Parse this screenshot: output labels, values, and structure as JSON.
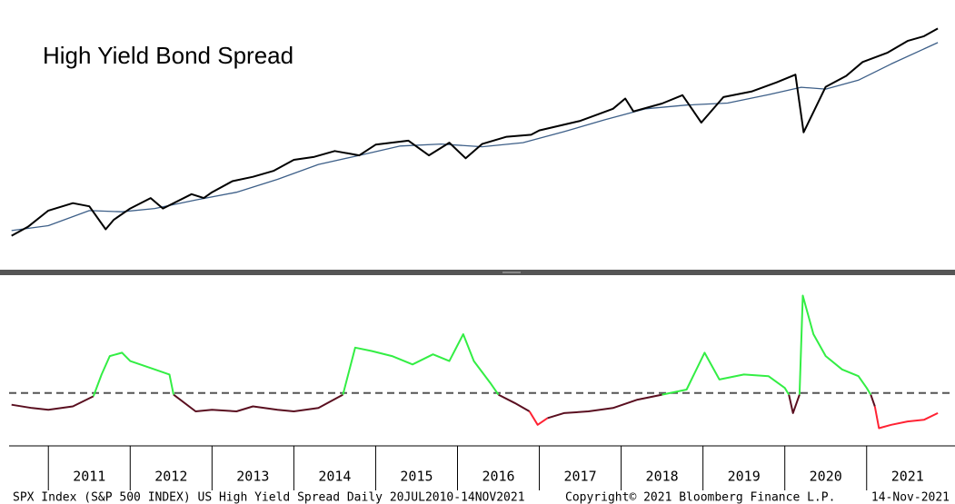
{
  "chart_data": [
    {
      "type": "line",
      "title": "High Yield Bond Spread",
      "log": true,
      "xlim": [
        2010.52,
        2021.88
      ],
      "ylim": [
        1000,
        4900
      ],
      "x": [
        2010.55,
        2010.75,
        2011,
        2011.3,
        2011.5,
        2011.7,
        2011.8,
        2012,
        2012.25,
        2012.4,
        2012.75,
        2012.9,
        2013,
        2013.25,
        2013.5,
        2013.75,
        2014,
        2014.25,
        2014.5,
        2014.8,
        2015,
        2015.4,
        2015.65,
        2015.9,
        2016.1,
        2016.3,
        2016.6,
        2016.9,
        2017,
        2017.5,
        2017.9,
        2018.05,
        2018.15,
        2018.5,
        2018.75,
        2018.98,
        2019.25,
        2019.6,
        2019.9,
        2020.13,
        2020.23,
        2020.5,
        2020.75,
        2020.95,
        2021.25,
        2021.5,
        2021.7,
        2021.87
      ],
      "series": [
        {
          "color": "#000000",
          "values": [
            1070,
            1140,
            1280,
            1350,
            1320,
            1120,
            1200,
            1300,
            1400,
            1300,
            1440,
            1400,
            1460,
            1580,
            1630,
            1700,
            1840,
            1880,
            1960,
            1900,
            2050,
            2110,
            1900,
            2080,
            1860,
            2060,
            2170,
            2200,
            2270,
            2430,
            2650,
            2850,
            2600,
            2750,
            2920,
            2400,
            2880,
            3000,
            3200,
            3380,
            2240,
            3100,
            3350,
            3700,
            3950,
            4300,
            4450,
            4700
          ]
        }
      ],
      "ma_x": [
        2010.55,
        2011,
        2011.5,
        2011.9,
        2012.3,
        2012.8,
        2013.3,
        2013.8,
        2014.3,
        2014.8,
        2015.3,
        2015.8,
        2016.3,
        2016.8,
        2017.3,
        2017.8,
        2018.3,
        2018.8,
        2019.3,
        2019.8,
        2020.2,
        2020.5,
        2020.9,
        2021.3,
        2021.87
      ],
      "ma_color": "#3d5f88",
      "ma_values": [
        1110,
        1150,
        1280,
        1270,
        1300,
        1380,
        1460,
        1600,
        1780,
        1900,
        2030,
        2060,
        2020,
        2080,
        2250,
        2450,
        2650,
        2720,
        2760,
        2930,
        3090,
        3050,
        3250,
        3650,
        4250
      ]
    },
    {
      "type": "line",
      "xlim": [
        2010.52,
        2021.88
      ],
      "ylim": [
        2,
        11.2
      ],
      "xticks": [
        2011,
        2012,
        2013,
        2014,
        2015,
        2016,
        2017,
        2018,
        2019,
        2020,
        2021
      ],
      "threshold": 5.1,
      "x": [
        2010.55,
        2010.8,
        2011,
        2011.3,
        2011.55,
        2011.65,
        2011.75,
        2011.9,
        2012,
        2012.3,
        2012.48,
        2012.53,
        2012.8,
        2013,
        2013.3,
        2013.5,
        2013.8,
        2014,
        2014.3,
        2014.6,
        2014.75,
        2014.95,
        2015.2,
        2015.45,
        2015.7,
        2015.9,
        2016.07,
        2016.2,
        2016.4,
        2016.5,
        2016.7,
        2016.88,
        2016.98,
        2017.1,
        2017.3,
        2017.6,
        2017.9,
        2018.2,
        2018.5,
        2018.8,
        2019.02,
        2019.2,
        2019.5,
        2019.8,
        2020,
        2020.05,
        2020.1,
        2020.18,
        2020.22,
        2020.35,
        2020.5,
        2020.7,
        2020.9,
        2021,
        2021.05,
        2021.1,
        2021.15,
        2021.3,
        2021.5,
        2021.7,
        2021.87
      ],
      "series": [
        {
          "color": "#5a0f20",
          "values": [
            4.4,
            4.2,
            4.1,
            4.3,
            4.9,
            null,
            null,
            null,
            null,
            null,
            null,
            5.0,
            4.0,
            4.1,
            4.0,
            4.3,
            4.1,
            4.0,
            4.2,
            5.0,
            null,
            null,
            null,
            null,
            null,
            null,
            null,
            null,
            null,
            5.0,
            4.5,
            4.0,
            null,
            3.6,
            3.9,
            4.0,
            4.2,
            4.7,
            5.0,
            null,
            null,
            null,
            null,
            null,
            null,
            5.0,
            3.9,
            5.0,
            null,
            null,
            null,
            null,
            null,
            null,
            5.0,
            4.3,
            null,
            null,
            null,
            null,
            null
          ]
        },
        {
          "color": "#33ee44",
          "values": [
            null,
            null,
            null,
            null,
            4.9,
            6.2,
            7.3,
            7.5,
            7.0,
            6.5,
            6.2,
            5.0,
            null,
            null,
            null,
            null,
            null,
            null,
            null,
            5.0,
            7.8,
            7.6,
            7.3,
            6.8,
            7.4,
            7.0,
            8.6,
            7.0,
            5.7,
            5.0,
            null,
            null,
            null,
            null,
            null,
            null,
            null,
            null,
            5.0,
            5.3,
            7.5,
            5.9,
            6.2,
            6.1,
            5.4,
            5.0,
            null,
            5.0,
            10.9,
            8.6,
            7.3,
            6.5,
            6.1,
            5.4,
            5.0,
            null,
            null,
            null,
            null,
            null,
            null
          ]
        },
        {
          "color": "#ff2233",
          "values": [
            null,
            null,
            null,
            null,
            null,
            null,
            null,
            null,
            null,
            null,
            null,
            null,
            null,
            null,
            null,
            null,
            null,
            null,
            null,
            null,
            null,
            null,
            null,
            null,
            null,
            null,
            null,
            null,
            null,
            null,
            null,
            4.0,
            3.2,
            3.6,
            null,
            null,
            null,
            null,
            null,
            null,
            null,
            null,
            null,
            null,
            null,
            null,
            null,
            null,
            null,
            null,
            null,
            null,
            null,
            null,
            null,
            4.3,
            3.0,
            3.2,
            3.4,
            3.5,
            3.9
          ]
        }
      ]
    }
  ],
  "footer": {
    "left": "SPX Index (S&P 500 INDEX) US High Yield Spread  Daily 20JUL2010-14NOV2021",
    "center": "Copyright© 2021 Bloomberg Finance L.P.",
    "right": "14-Nov-2021"
  }
}
